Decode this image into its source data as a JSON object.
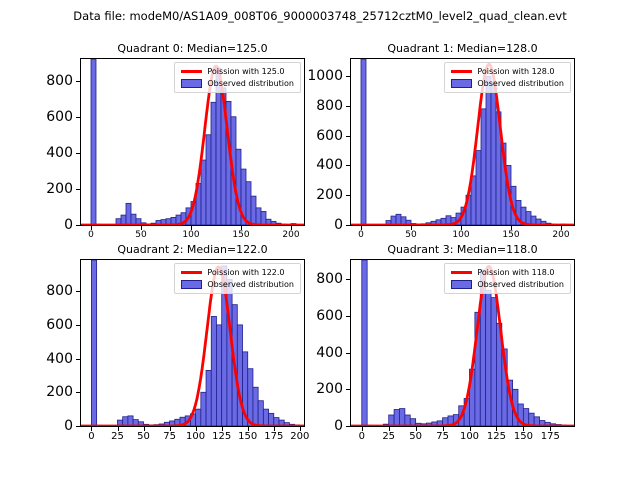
{
  "figure": {
    "suptitle": "Data file: modeM0/AS1A09_008T06_9000003748_25712cztM0_level2_quad_clean.evt"
  },
  "colors": {
    "curve_red": "#ff0000",
    "bar_fill": "#6a6ae4",
    "bar_edge": "#20208c",
    "axes_edge": "#000000",
    "legend_border": "#d4d4d4"
  },
  "chart_data": [
    {
      "type": "bar",
      "quadrant": 0,
      "title": "Quadrant 0: Median=125.0",
      "median": 125.0,
      "legend": [
        "Poission with 125.0",
        "Observed distribution"
      ],
      "legend_position": "upper right",
      "grid": false,
      "xlim": [
        -10,
        213
      ],
      "ylim": [
        0,
        920
      ],
      "xticks": [
        0,
        50,
        100,
        150,
        200
      ],
      "yticks": [
        0,
        200,
        400,
        600,
        800
      ],
      "bin_start": 0,
      "bin_width": 5,
      "counts": [
        3000,
        4,
        2,
        2,
        3,
        35,
        55,
        120,
        60,
        35,
        12,
        6,
        10,
        25,
        30,
        35,
        42,
        55,
        68,
        95,
        130,
        230,
        360,
        500,
        680,
        870,
        760,
        685,
        600,
        420,
        310,
        240,
        160,
        95,
        75,
        32,
        20,
        10,
        5,
        3,
        8
      ],
      "curve": {
        "shape": "gaussian",
        "mean": 125.0,
        "variance": 125.0,
        "peak": 880
      }
    },
    {
      "type": "bar",
      "quadrant": 1,
      "title": "Quadrant 1: Median=128.0",
      "median": 128.0,
      "legend": [
        "Poission with 128.0",
        "Observed distribution"
      ],
      "legend_position": "upper right",
      "grid": false,
      "xlim": [
        -10,
        213
      ],
      "ylim": [
        0,
        1115
      ],
      "xticks": [
        0,
        50,
        100,
        150,
        200
      ],
      "yticks": [
        0,
        200,
        400,
        600,
        800,
        1000
      ],
      "bin_start": 0,
      "bin_width": 5,
      "counts": [
        3000,
        4,
        2,
        2,
        3,
        30,
        60,
        72,
        55,
        32,
        10,
        6,
        8,
        15,
        25,
        35,
        45,
        62,
        50,
        80,
        120,
        200,
        330,
        500,
        780,
        1000,
        955,
        760,
        550,
        400,
        260,
        165,
        120,
        90,
        60,
        40,
        25,
        12,
        6,
        4,
        6
      ],
      "curve": {
        "shape": "gaussian",
        "mean": 128.0,
        "variance": 128.0,
        "peak": 1080
      }
    },
    {
      "type": "bar",
      "quadrant": 2,
      "title": "Quadrant 2: Median=122.0",
      "median": 122.0,
      "legend": [
        "Poission with 122.0",
        "Observed distribution"
      ],
      "legend_position": "upper right",
      "grid": false,
      "xlim": [
        -10,
        204
      ],
      "ylim": [
        0,
        985
      ],
      "xticks": [
        0,
        25,
        50,
        75,
        100,
        125,
        150,
        175,
        200
      ],
      "yticks": [
        0,
        200,
        400,
        600,
        800
      ],
      "bin_start": 0,
      "bin_width": 5,
      "counts": [
        3000,
        4,
        2,
        2,
        3,
        35,
        55,
        60,
        38,
        25,
        10,
        6,
        8,
        12,
        22,
        30,
        40,
        52,
        60,
        72,
        100,
        200,
        330,
        650,
        600,
        950,
        870,
        720,
        600,
        440,
        340,
        230,
        150,
        100,
        75,
        50,
        35,
        20,
        10,
        6
      ],
      "curve": {
        "shape": "gaussian",
        "mean": 122.0,
        "variance": 122.0,
        "peak": 945
      }
    },
    {
      "type": "bar",
      "quadrant": 3,
      "title": "Quadrant 3: Median=118.0",
      "median": 118.0,
      "legend": [
        "Poission with 118.0",
        "Observed distribution"
      ],
      "legend_position": "upper right",
      "grid": false,
      "xlim": [
        -10,
        197
      ],
      "ylim": [
        0,
        905
      ],
      "xticks": [
        0,
        25,
        50,
        75,
        100,
        125,
        150,
        175
      ],
      "yticks": [
        0,
        200,
        400,
        600,
        800
      ],
      "bin_start": 0,
      "bin_width": 5,
      "counts": [
        3000,
        4,
        3,
        3,
        10,
        60,
        90,
        95,
        60,
        40,
        15,
        12,
        16,
        22,
        28,
        45,
        55,
        62,
        110,
        150,
        310,
        620,
        850,
        740,
        700,
        560,
        420,
        250,
        200,
        120,
        95,
        70,
        50,
        30,
        20,
        12,
        8,
        5
      ],
      "curve": {
        "shape": "gaussian",
        "mean": 118.0,
        "variance": 118.0,
        "peak": 870
      }
    }
  ]
}
